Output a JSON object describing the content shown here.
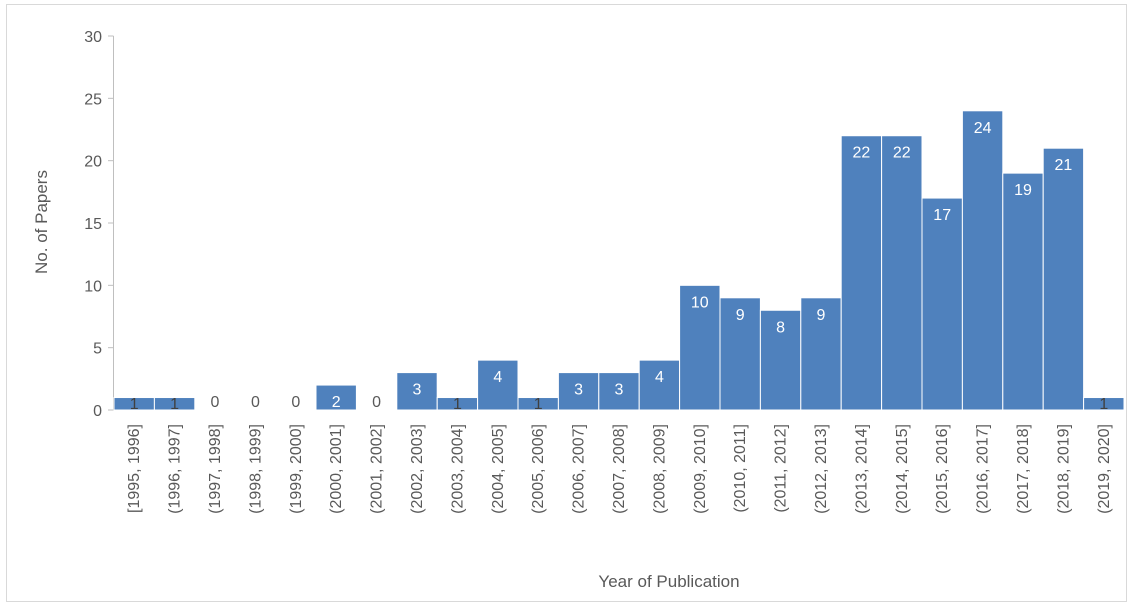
{
  "chart_data": {
    "type": "bar",
    "title": "",
    "xlabel": "Year of Publication",
    "ylabel": "No. of Papers",
    "ylim": [
      0,
      30
    ],
    "yticks": [
      0,
      5,
      10,
      15,
      20,
      25,
      30
    ],
    "grid": false,
    "legend": "none",
    "bar_color": "#4f81bd",
    "categories": [
      "[1995, 1996]",
      "(1996, 1997]",
      "(1997, 1998]",
      "(1998, 1999]",
      "(1999, 2000]",
      "(2000, 2001]",
      "(2001, 2002]",
      "(2002, 2003]",
      "(2003, 2004]",
      "(2004, 2005]",
      "(2005, 2006]",
      "(2006, 2007]",
      "(2007, 2008]",
      "(2008, 2009]",
      "(2009, 2010]",
      "(2010, 2011]",
      "(2011, 2012]",
      "(2012, 2013]",
      "(2013, 2014]",
      "(2014, 2015]",
      "(2015, 2016]",
      "(2016, 2017]",
      "(2017, 2018]",
      "(2018, 2019]",
      "(2019, 2020]"
    ],
    "values": [
      1,
      1,
      0,
      0,
      0,
      2,
      0,
      3,
      1,
      4,
      1,
      3,
      3,
      4,
      10,
      9,
      8,
      9,
      22,
      22,
      17,
      24,
      19,
      21,
      1
    ]
  }
}
